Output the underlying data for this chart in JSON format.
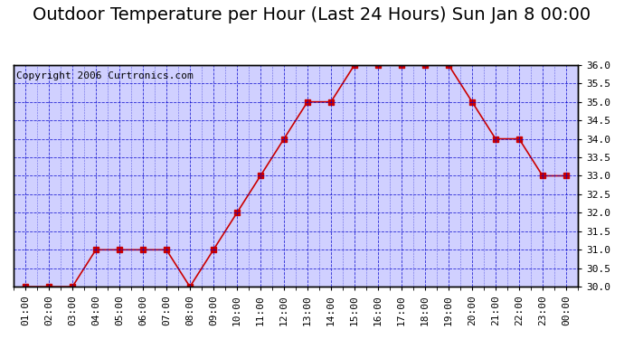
{
  "title": "Outdoor Temperature per Hour (Last 24 Hours) Sun Jan 8 00:00",
  "copyright": "Copyright 2006 Curtronics.com",
  "hours": [
    "01:00",
    "02:00",
    "03:00",
    "04:00",
    "05:00",
    "06:00",
    "07:00",
    "08:00",
    "09:00",
    "10:00",
    "11:00",
    "12:00",
    "13:00",
    "14:00",
    "15:00",
    "16:00",
    "17:00",
    "18:00",
    "19:00",
    "20:00",
    "21:00",
    "22:00",
    "23:00",
    "00:00"
  ],
  "temps": [
    30.0,
    30.0,
    30.0,
    31.0,
    31.0,
    31.0,
    31.0,
    30.0,
    31.0,
    32.0,
    33.0,
    34.0,
    35.0,
    35.0,
    36.0,
    36.0,
    36.0,
    36.0,
    36.0,
    35.0,
    34.0,
    34.0,
    33.0,
    33.0
  ],
  "ylim": [
    30.0,
    36.0
  ],
  "yticks": [
    30.0,
    30.5,
    31.0,
    31.5,
    32.0,
    32.5,
    33.0,
    33.5,
    34.0,
    34.5,
    35.0,
    35.5,
    36.0
  ],
  "line_color": "#cc0000",
  "marker_color": "#cc0000",
  "grid_color": "#0000cc",
  "bg_color": "#ffffff",
  "plot_bg_color": "#d0d0ff",
  "title_fontsize": 14,
  "copyright_fontsize": 8,
  "tick_fontsize": 8,
  "ylabel_right": true
}
